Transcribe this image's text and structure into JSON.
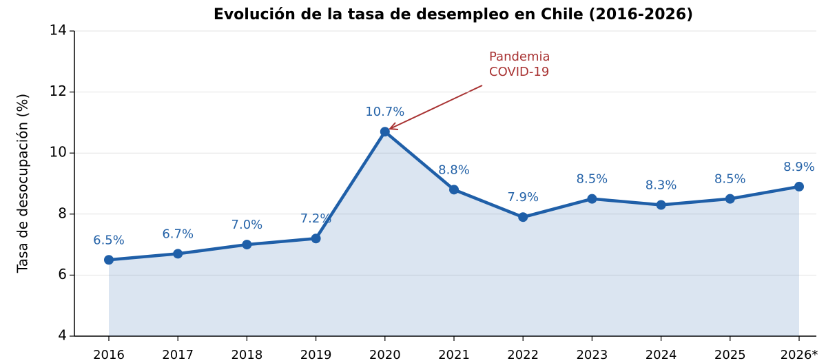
{
  "chart_data": {
    "type": "line",
    "title": "Evolución de la tasa de desempleo en Chile (2016-2026)",
    "ylabel": "Tasa de desocupación (%)",
    "categories": [
      "2016",
      "2017",
      "2018",
      "2019",
      "2020",
      "2021",
      "2022",
      "2023",
      "2024",
      "2025",
      "2026*"
    ],
    "values": [
      6.5,
      6.7,
      7.0,
      7.2,
      10.7,
      8.8,
      7.9,
      8.5,
      8.3,
      8.5,
      8.9
    ],
    "value_labels": [
      "6.5%",
      "6.7%",
      "7.0%",
      "7.2%",
      "10.7%",
      "8.8%",
      "7.9%",
      "8.5%",
      "8.3%",
      "8.5%",
      "8.9%"
    ],
    "color": "#1f5fa8",
    "ylim": [
      4,
      14
    ],
    "yticks": [
      4,
      6,
      8,
      10,
      12,
      14
    ],
    "grid": true,
    "annotation": [
      "Pandemia",
      "COVID-19"
    ]
  }
}
